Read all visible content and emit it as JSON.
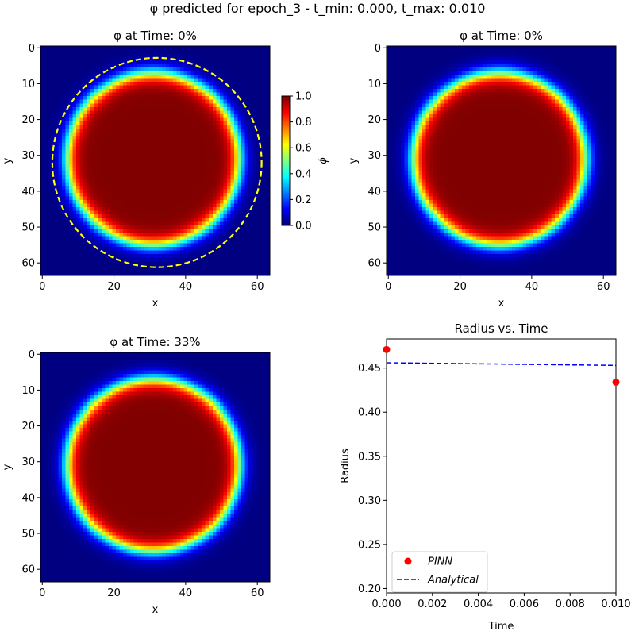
{
  "suptitle": "φ predicted for epoch_3 - t_min: 0.000, t_max: 0.010",
  "colors": {
    "pinn_marker": "#ff0000",
    "analytical_line": "#0000ff",
    "dashed_circle": "#ffff00",
    "colormap": "jet"
  },
  "chart_data": [
    {
      "type": "heatmap",
      "title": "φ at Time: 0%",
      "xlabel": "x",
      "ylabel": "y",
      "grid_size": 64,
      "field": {
        "center_x": 31,
        "center_y": 31,
        "radius": 24,
        "interface_width": 2.6
      },
      "xlim": [
        0,
        63
      ],
      "ylim": [
        63,
        0
      ],
      "xticks": [
        0,
        20,
        40,
        60
      ],
      "yticks": [
        0,
        10,
        20,
        30,
        40,
        50,
        60
      ],
      "overlay_circle": {
        "center_x": 32,
        "center_y": 32,
        "radius": 29.2,
        "style": "dashed"
      },
      "colorbar": {
        "label": "ϕ",
        "ticks": [
          "0.0",
          "0.2",
          "0.4",
          "0.6",
          "0.8",
          "1.0"
        ],
        "range": [
          0,
          1
        ]
      }
    },
    {
      "type": "heatmap",
      "title": "φ at Time: 0%",
      "xlabel": "x",
      "ylabel": "y",
      "grid_size": 64,
      "field": {
        "center_x": 31,
        "center_y": 31,
        "radius": 24,
        "interface_width": 2.6
      },
      "xlim": [
        0,
        63
      ],
      "ylim": [
        63,
        0
      ],
      "xticks": [
        0,
        20,
        40,
        60
      ],
      "yticks": [
        0,
        10,
        20,
        30,
        40,
        50,
        60
      ]
    },
    {
      "type": "heatmap",
      "title": "φ at Time: 33%",
      "xlabel": "x",
      "ylabel": "y",
      "grid_size": 64,
      "field": {
        "center_x": 31,
        "center_y": 31,
        "radius": 24,
        "interface_width": 2.6
      },
      "xlim": [
        0,
        63
      ],
      "ylim": [
        63,
        0
      ],
      "xticks": [
        0,
        20,
        40,
        60
      ],
      "yticks": [
        0,
        10,
        20,
        30,
        40,
        50,
        60
      ]
    },
    {
      "type": "scatter",
      "title": "Radius vs. Time",
      "xlabel": "Time",
      "ylabel": "Radius",
      "xlim": [
        0.0,
        0.01
      ],
      "ylim": [
        0.195,
        0.483
      ],
      "xticks": [
        "0.000",
        "0.002",
        "0.004",
        "0.006",
        "0.008",
        "0.010"
      ],
      "yticks": [
        "0.20",
        "0.25",
        "0.30",
        "0.35",
        "0.40",
        "0.45"
      ],
      "legend_position": "lower-left",
      "series": [
        {
          "name": "PINN",
          "style": "markers",
          "x": [
            0.0,
            0.01
          ],
          "y": [
            0.471,
            0.434
          ]
        },
        {
          "name": "Analytical",
          "style": "dashed-line",
          "x": [
            0.0,
            0.01
          ],
          "y": [
            0.456,
            0.453
          ]
        }
      ]
    }
  ]
}
